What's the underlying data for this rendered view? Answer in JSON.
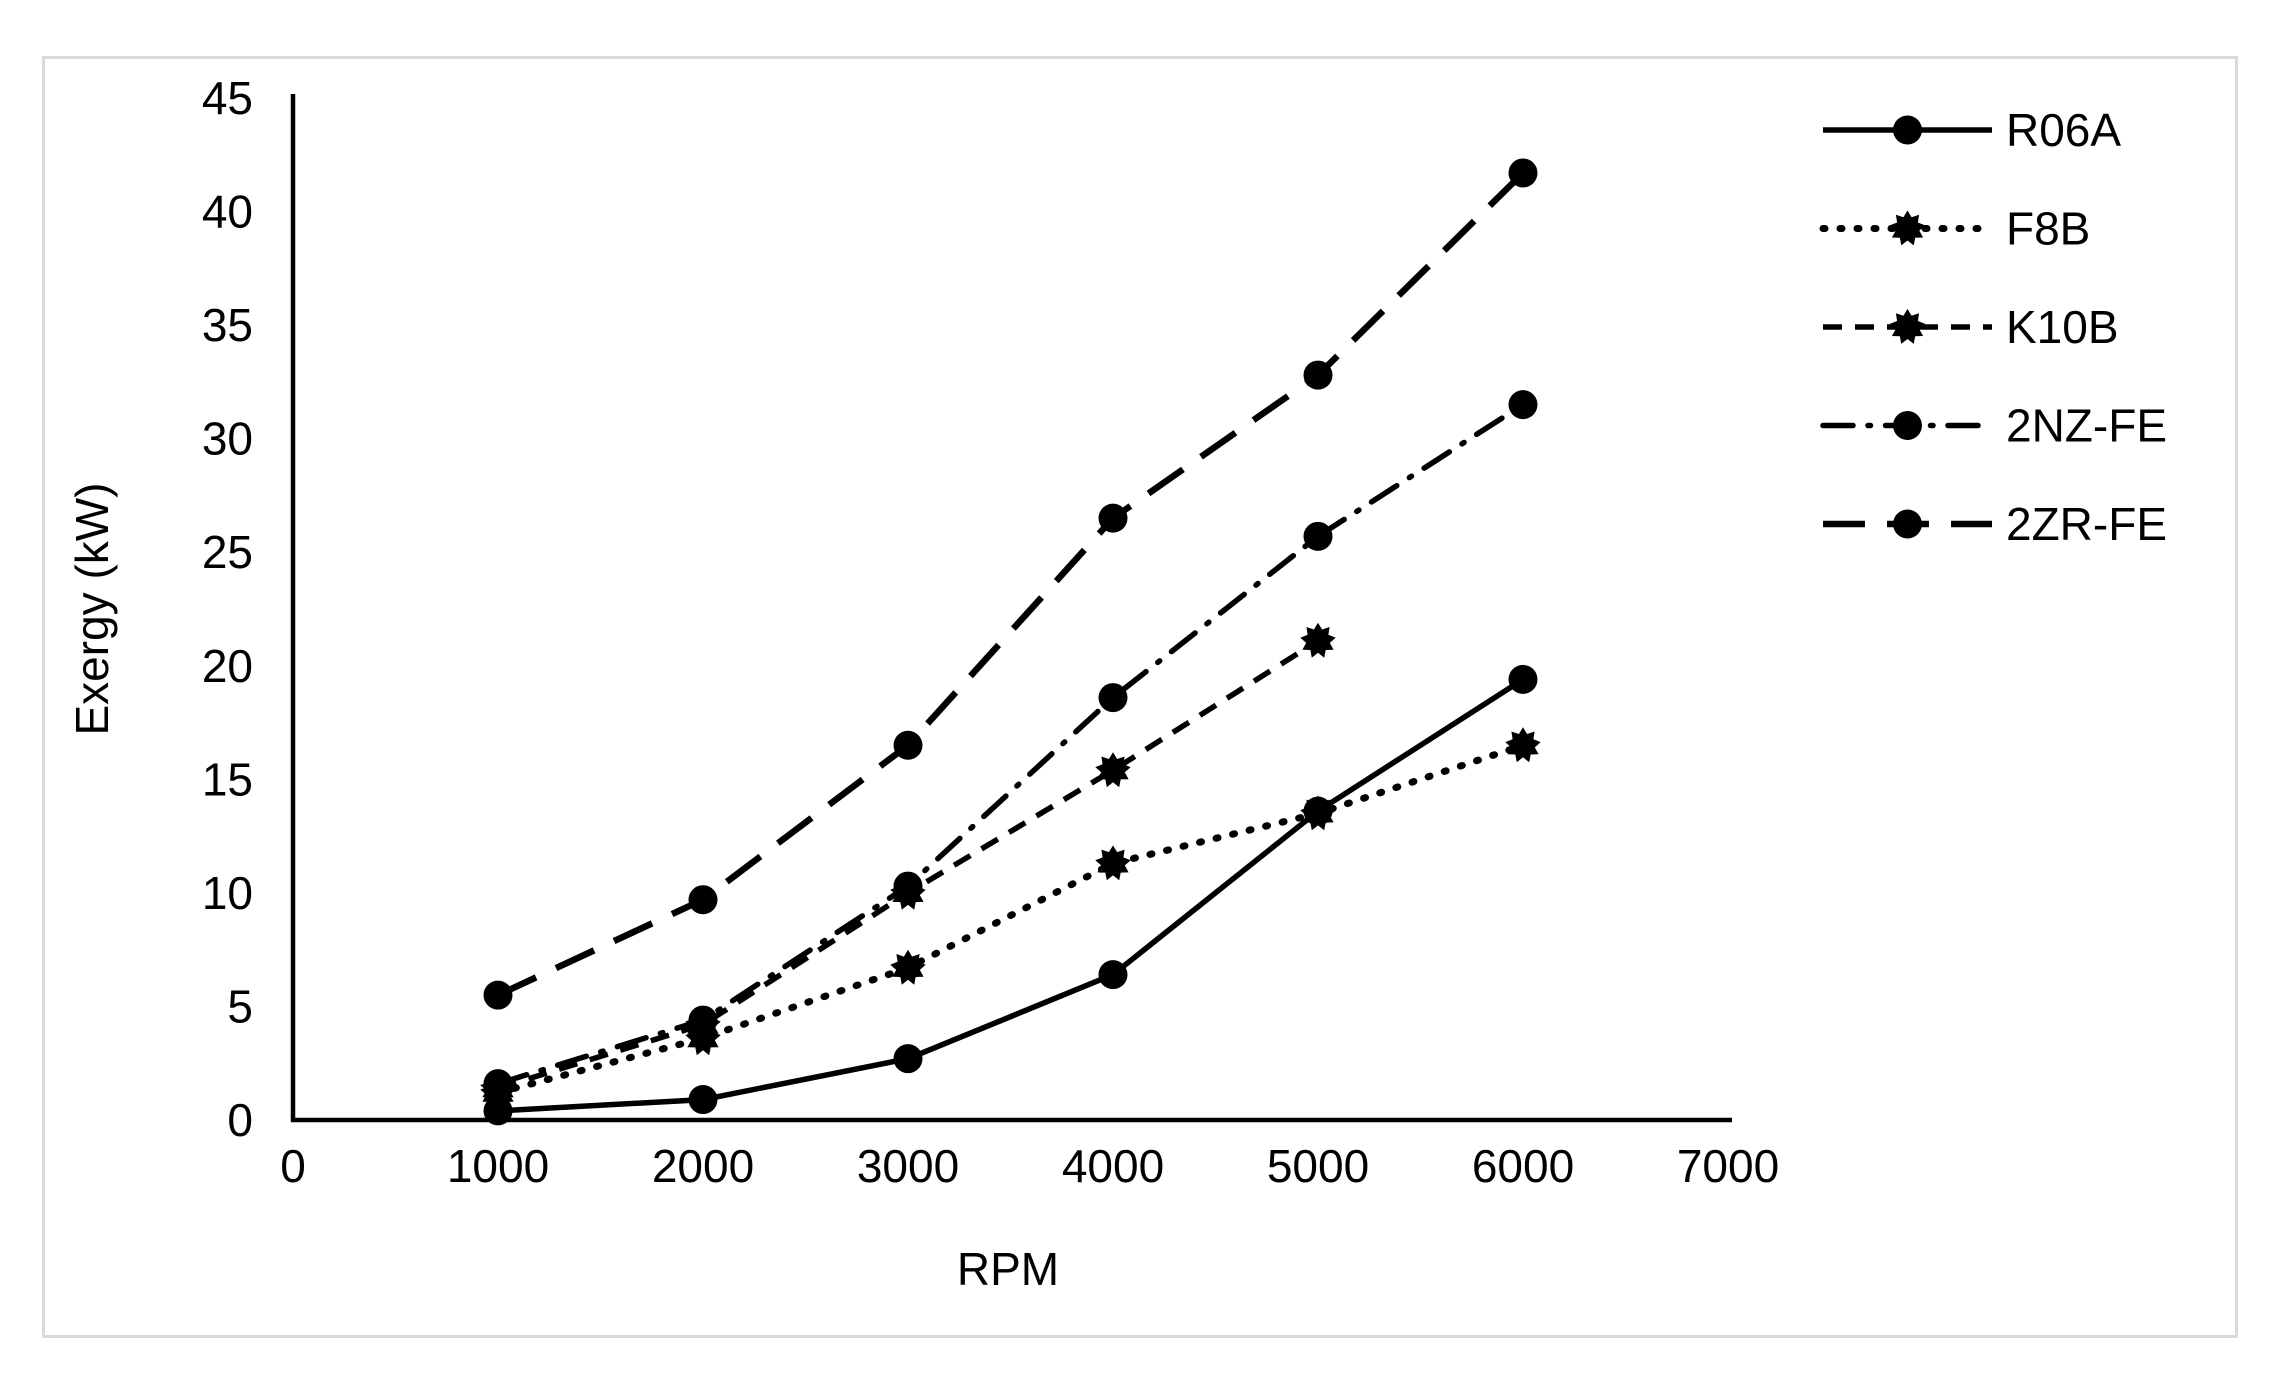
{
  "figure": {
    "background_color": "#ffffff",
    "border_color": "#d9d9d9",
    "ink_color": "#000000"
  },
  "chart_data": {
    "type": "line",
    "title": "",
    "xlabel": "RPM",
    "ylabel": "Exergy (kW)",
    "x": [
      1000,
      2000,
      3000,
      4000,
      5000,
      6000
    ],
    "xlim": [
      0,
      7000
    ],
    "x_ticks": [
      0,
      1000,
      2000,
      3000,
      4000,
      5000,
      6000,
      7000
    ],
    "ylim": [
      0,
      45
    ],
    "y_ticks": [
      0,
      5,
      10,
      15,
      20,
      25,
      30,
      35,
      40,
      45
    ],
    "grid": false,
    "legend_position": "right",
    "series": [
      {
        "name": "R06A",
        "line_style": "solid",
        "marker": "circle",
        "values": [
          0.4,
          0.9,
          2.7,
          6.4,
          13.6,
          19.4
        ]
      },
      {
        "name": "F8B",
        "line_style": "dotted",
        "marker": "star",
        "values": [
          1.2,
          3.6,
          6.7,
          11.3,
          13.5,
          16.5
        ]
      },
      {
        "name": "K10B",
        "line_style": "dashed",
        "marker": "star",
        "values": [
          1.4,
          4.2,
          10.0,
          15.4,
          21.1,
          null
        ]
      },
      {
        "name": "2NZ-FE",
        "line_style": "dash-dot",
        "marker": "circle",
        "values": [
          1.6,
          4.4,
          10.3,
          18.6,
          25.7,
          31.5
        ]
      },
      {
        "name": "2ZR-FE",
        "line_style": "long-dash",
        "marker": "circle",
        "values": [
          5.5,
          9.7,
          16.5,
          26.5,
          32.8,
          41.7
        ]
      }
    ]
  }
}
